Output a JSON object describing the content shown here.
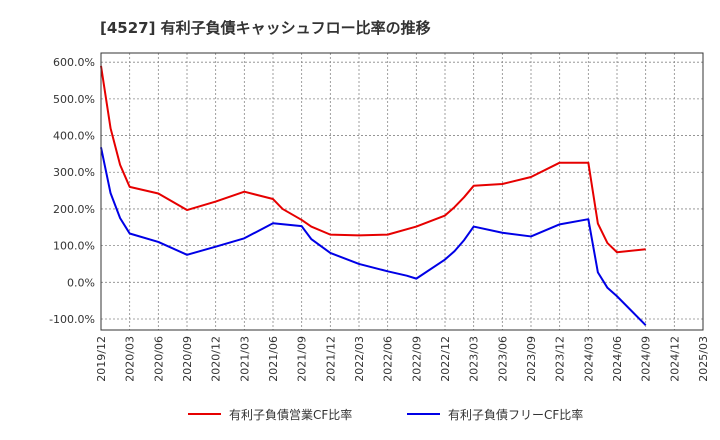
{
  "chart_data": {
    "type": "line",
    "title": "[4527]  有利子負債キャッシュフロー比率の推移",
    "xlabel": "",
    "ylabel": "",
    "x_ticks": [
      "2019/12",
      "2020/03",
      "2020/06",
      "2020/09",
      "2020/12",
      "2021/03",
      "2021/06",
      "2021/09",
      "2021/12",
      "2022/03",
      "2022/06",
      "2022/09",
      "2022/12",
      "2023/03",
      "2023/06",
      "2023/09",
      "2023/12",
      "2024/03",
      "2024/06",
      "2024/09",
      "2024/12",
      "2025/03"
    ],
    "y_ticks": [
      "600.0%",
      "500.0%",
      "400.0%",
      "300.0%",
      "200.0%",
      "100.0%",
      "0.0%",
      "-100.0%"
    ],
    "ylim": [
      -130,
      625
    ],
    "grid": true,
    "legend_position": "bottom",
    "series": [
      {
        "name": "有利子負債営業CF比率",
        "color": "#e60000",
        "points": [
          [
            "2019/12",
            590
          ],
          [
            "2020/01",
            420
          ],
          [
            "2020/02",
            320
          ],
          [
            "2020/03",
            260
          ],
          [
            "2020/06",
            242
          ],
          [
            "2020/09",
            197
          ],
          [
            "2020/12",
            220
          ],
          [
            "2021/03",
            247
          ],
          [
            "2021/06",
            227
          ],
          [
            "2021/07",
            200
          ],
          [
            "2021/09",
            170
          ],
          [
            "2021/10",
            152
          ],
          [
            "2021/12",
            130
          ],
          [
            "2022/03",
            128
          ],
          [
            "2022/06",
            130
          ],
          [
            "2022/09",
            152
          ],
          [
            "2022/12",
            182
          ],
          [
            "2023/01",
            205
          ],
          [
            "2023/02",
            232
          ],
          [
            "2023/03",
            263
          ],
          [
            "2023/06",
            268
          ],
          [
            "2023/09",
            287
          ],
          [
            "2023/12",
            326
          ],
          [
            "2024/03",
            326
          ],
          [
            "2024/04",
            160
          ],
          [
            "2024/05",
            107
          ],
          [
            "2024/06",
            82
          ],
          [
            "2024/09",
            90
          ]
        ]
      },
      {
        "name": "有利子負債フリーCF比率",
        "color": "#0000e6",
        "points": [
          [
            "2019/12",
            368
          ],
          [
            "2020/01",
            243
          ],
          [
            "2020/02",
            175
          ],
          [
            "2020/03",
            133
          ],
          [
            "2020/06",
            110
          ],
          [
            "2020/09",
            75
          ],
          [
            "2020/12",
            97
          ],
          [
            "2021/03",
            120
          ],
          [
            "2021/06",
            161
          ],
          [
            "2021/09",
            153
          ],
          [
            "2021/10",
            118
          ],
          [
            "2021/12",
            80
          ],
          [
            "2022/03",
            50
          ],
          [
            "2022/06",
            30
          ],
          [
            "2022/08",
            18
          ],
          [
            "2022/09",
            10
          ],
          [
            "2022/12",
            62
          ],
          [
            "2023/01",
            85
          ],
          [
            "2023/02",
            115
          ],
          [
            "2023/03",
            152
          ],
          [
            "2023/06",
            135
          ],
          [
            "2023/09",
            125
          ],
          [
            "2023/12",
            158
          ],
          [
            "2024/03",
            172
          ],
          [
            "2024/04",
            27
          ],
          [
            "2024/05",
            -15
          ],
          [
            "2024/06",
            -38
          ],
          [
            "2024/09",
            -117
          ]
        ]
      }
    ]
  }
}
